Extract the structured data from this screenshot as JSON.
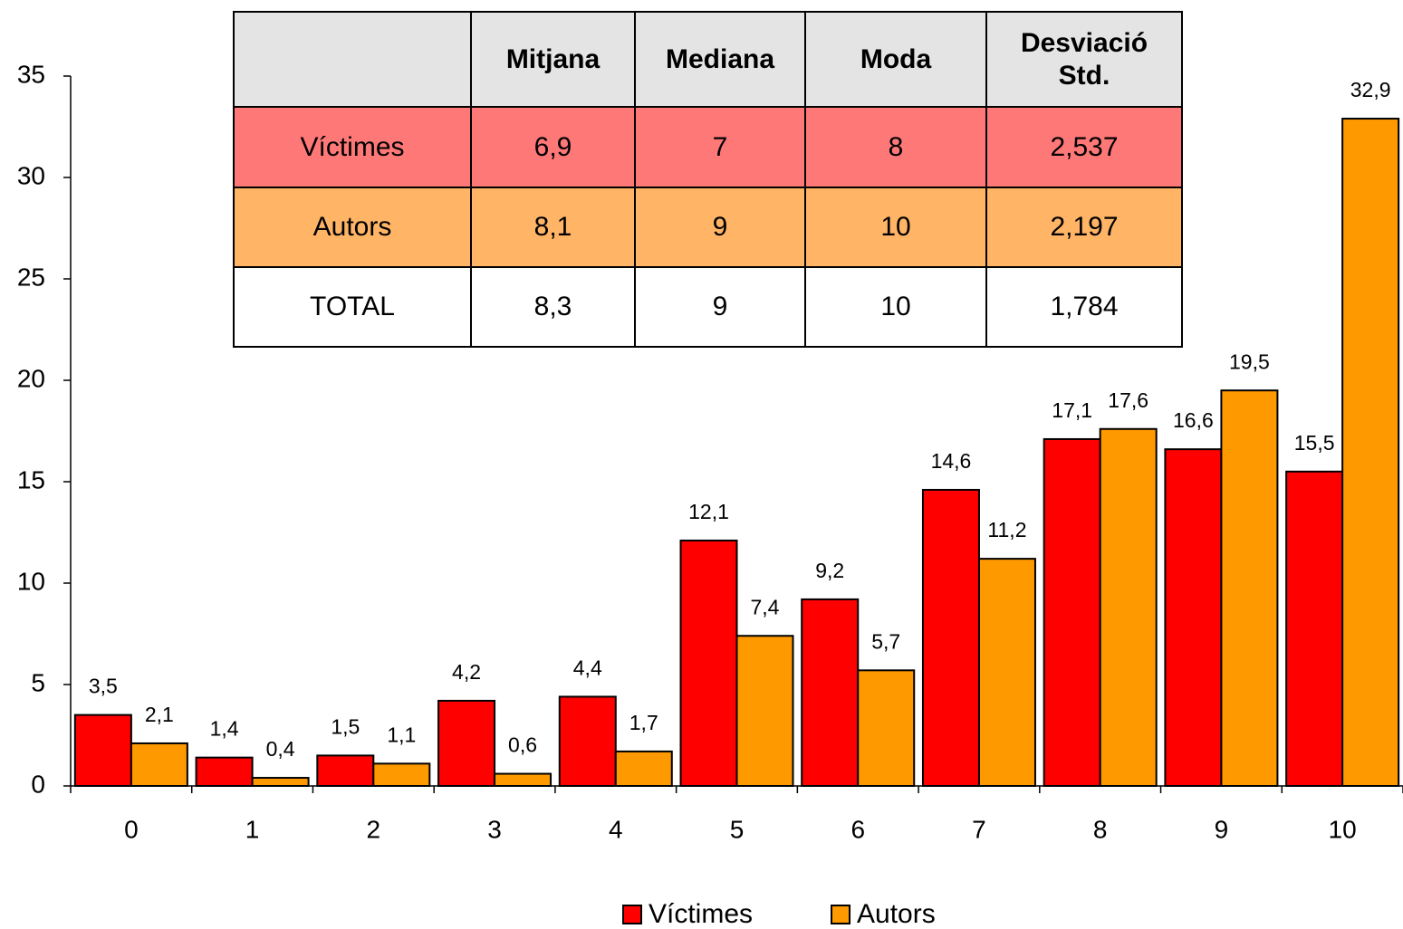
{
  "chart_data": {
    "type": "bar",
    "categories": [
      "0",
      "1",
      "2",
      "3",
      "4",
      "5",
      "6",
      "7",
      "8",
      "9",
      "10"
    ],
    "series": [
      {
        "name": "Víctimes",
        "color": "#ff0000",
        "values": [
          3.5,
          1.4,
          1.5,
          4.2,
          4.4,
          12.1,
          9.2,
          14.6,
          17.1,
          16.6,
          15.5
        ],
        "value_labels": [
          "3,5",
          "1,4",
          "1,5",
          "4,2",
          "4,4",
          "12,1",
          "9,2",
          "14,6",
          "17,1",
          "16,6",
          "15,5"
        ]
      },
      {
        "name": "Autors",
        "color": "#ff9900",
        "values": [
          2.1,
          0.4,
          1.1,
          0.6,
          1.7,
          7.4,
          5.7,
          11.2,
          17.6,
          19.5,
          32.9
        ],
        "value_labels": [
          "2,1",
          "0,4",
          "1,1",
          "0,6",
          "1,7",
          "7,4",
          "5,7",
          "11,2",
          "17,6",
          "19,5",
          "32,9"
        ]
      }
    ],
    "ylim": [
      0,
      35
    ],
    "yticks": [
      0,
      5,
      10,
      15,
      20,
      25,
      30,
      35
    ],
    "grid": false,
    "legend": "bottom"
  },
  "table": {
    "header": [
      "Mitjana",
      "Mediana",
      "Moda",
      "Desviació Std."
    ],
    "rows": [
      {
        "label": "Víctimes",
        "values": [
          "6,9",
          "7",
          "8",
          "2,537"
        ]
      },
      {
        "label": "Autors",
        "values": [
          "8,1",
          "9",
          "10",
          "2,197"
        ]
      },
      {
        "label": "TOTAL",
        "values": [
          "8,3",
          "9",
          "10",
          "1,784"
        ]
      }
    ]
  }
}
